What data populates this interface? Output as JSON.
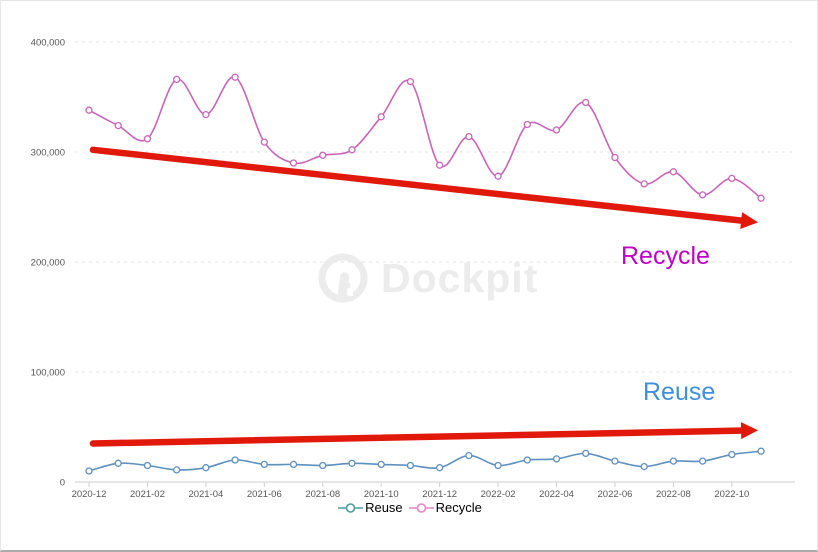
{
  "watermark": {
    "text": "Dockpit"
  },
  "annotations": {
    "recycle_label": {
      "text": "Recycle",
      "color": "#bf00c8"
    },
    "reuse_label": {
      "text": "Reuse",
      "color": "#3f8fdd"
    }
  },
  "legend": {
    "items": [
      {
        "label": "Reuse",
        "marker_color": "#4f9a9e"
      },
      {
        "label": "Recycle",
        "marker_color": "#e287c4"
      }
    ]
  },
  "chart_data": {
    "type": "line",
    "x": [
      "2020-12",
      "2021-01",
      "2021-02",
      "2021-03",
      "2021-04",
      "2021-05",
      "2021-06",
      "2021-07",
      "2021-08",
      "2021-09",
      "2021-10",
      "2021-11",
      "2021-12",
      "2022-01",
      "2022-02",
      "2022-03",
      "2022-04",
      "2022-05",
      "2022-06",
      "2022-07",
      "2022-08",
      "2022-09",
      "2022-10",
      "2022-11"
    ],
    "x_tick_labels": [
      "2020-12",
      "2021-02",
      "2021-04",
      "2021-06",
      "2021-08",
      "2021-10",
      "2021-12",
      "2022-02",
      "2022-04",
      "2022-06",
      "2022-08",
      "2022-10"
    ],
    "y_ticks": [
      0,
      100000,
      200000,
      300000,
      400000
    ],
    "y_tick_labels": [
      "0",
      "100,000",
      "200,000",
      "300,000",
      "400,000"
    ],
    "ylim": [
      0,
      400000
    ],
    "grid": "horizontal-dashed",
    "legend_position": "bottom-center",
    "series": [
      {
        "name": "Reuse",
        "color": "#5d8fbf",
        "values": [
          10000,
          17000,
          15000,
          11000,
          13000,
          20000,
          16000,
          16000,
          15000,
          17000,
          16000,
          15000,
          13000,
          24000,
          15000,
          20000,
          21000,
          26000,
          19000,
          14000,
          19000,
          19000,
          25000,
          28000
        ]
      },
      {
        "name": "Recycle",
        "color": "#c964b8",
        "values": [
          338000,
          324000,
          312000,
          366000,
          334000,
          368000,
          309000,
          290000,
          297000,
          302000,
          332000,
          364000,
          288000,
          314000,
          278000,
          325000,
          320000,
          345000,
          295000,
          271000,
          282000,
          261000,
          276000,
          258000
        ]
      }
    ],
    "trend_arrows": [
      {
        "series": "Recycle",
        "color": "#e1190b",
        "start": {
          "x": "2020-12",
          "value": 302000
        },
        "end": {
          "x": "2022-11",
          "value": 236000
        }
      },
      {
        "series": "Reuse",
        "color": "#e1190b",
        "start": {
          "x": "2020-12",
          "value": 35000
        },
        "end": {
          "x": "2022-11",
          "value": 47000
        }
      }
    ]
  }
}
